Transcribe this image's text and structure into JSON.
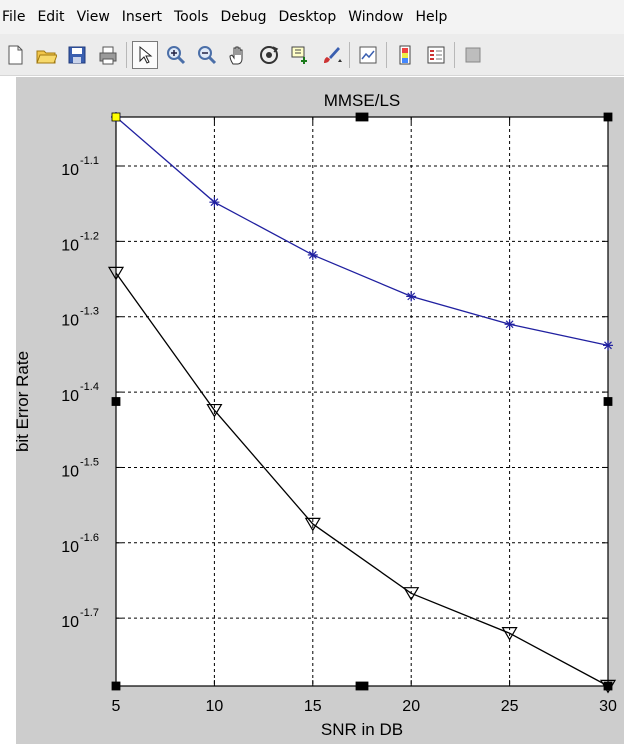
{
  "menu": [
    "File",
    "Edit",
    "View",
    "Insert",
    "Tools",
    "Debug",
    "Desktop",
    "Window",
    "Help"
  ],
  "toolbar": [
    {
      "icon": "new-file-icon"
    },
    {
      "icon": "open-folder-icon"
    },
    {
      "icon": "save-icon"
    },
    {
      "icon": "print-icon"
    },
    {
      "icon": "select-arrow-icon",
      "pressed": true
    },
    {
      "icon": "zoom-in-icon"
    },
    {
      "icon": "zoom-out-icon"
    },
    {
      "icon": "pan-hand-icon"
    },
    {
      "icon": "rotate-3d-icon"
    },
    {
      "icon": "data-cursor-icon"
    },
    {
      "icon": "brush-icon"
    },
    {
      "icon": "link-plot-icon"
    },
    {
      "icon": "colorbar-icon"
    },
    {
      "icon": "legend-icon"
    },
    {
      "icon": "hide-plot-tools-icon"
    }
  ],
  "colors": {
    "figure_background": "#cdcdcd",
    "series_1": "#2020a0",
    "series_2": "#000000",
    "selection_marker": "#ffff00"
  },
  "chart_data": {
    "type": "line",
    "title": "MMSE/LS",
    "xlabel": "SNR in DB",
    "ylabel": "bit Error Rate",
    "yscale": "log10",
    "xlim": [
      5,
      30
    ],
    "ylim": [
      -1.79,
      -1.035
    ],
    "xticks": [
      5,
      10,
      15,
      20,
      25,
      30
    ],
    "yticks": [
      -1.1,
      -1.2,
      -1.3,
      -1.4,
      -1.5,
      -1.6,
      -1.7
    ],
    "ytick_labels": [
      "10^-1.1",
      "10^-1.2",
      "10^-1.3",
      "10^-1.4",
      "10^-1.5",
      "10^-1.6",
      "10^-1.7"
    ],
    "grid": true,
    "series": [
      {
        "color": "#2020a0",
        "marker": "asterisk",
        "x": [
          5,
          10,
          15,
          20,
          25,
          30
        ],
        "log10_y": [
          -1.035,
          -1.148,
          -1.218,
          -1.273,
          -1.31,
          -1.338
        ]
      },
      {
        "color": "#000000",
        "marker": "triangle-down",
        "x": [
          5,
          10,
          15,
          20,
          25,
          30
        ],
        "log10_y": [
          -1.242,
          -1.424,
          -1.575,
          -1.667,
          -1.72,
          -1.79
        ]
      }
    ]
  }
}
